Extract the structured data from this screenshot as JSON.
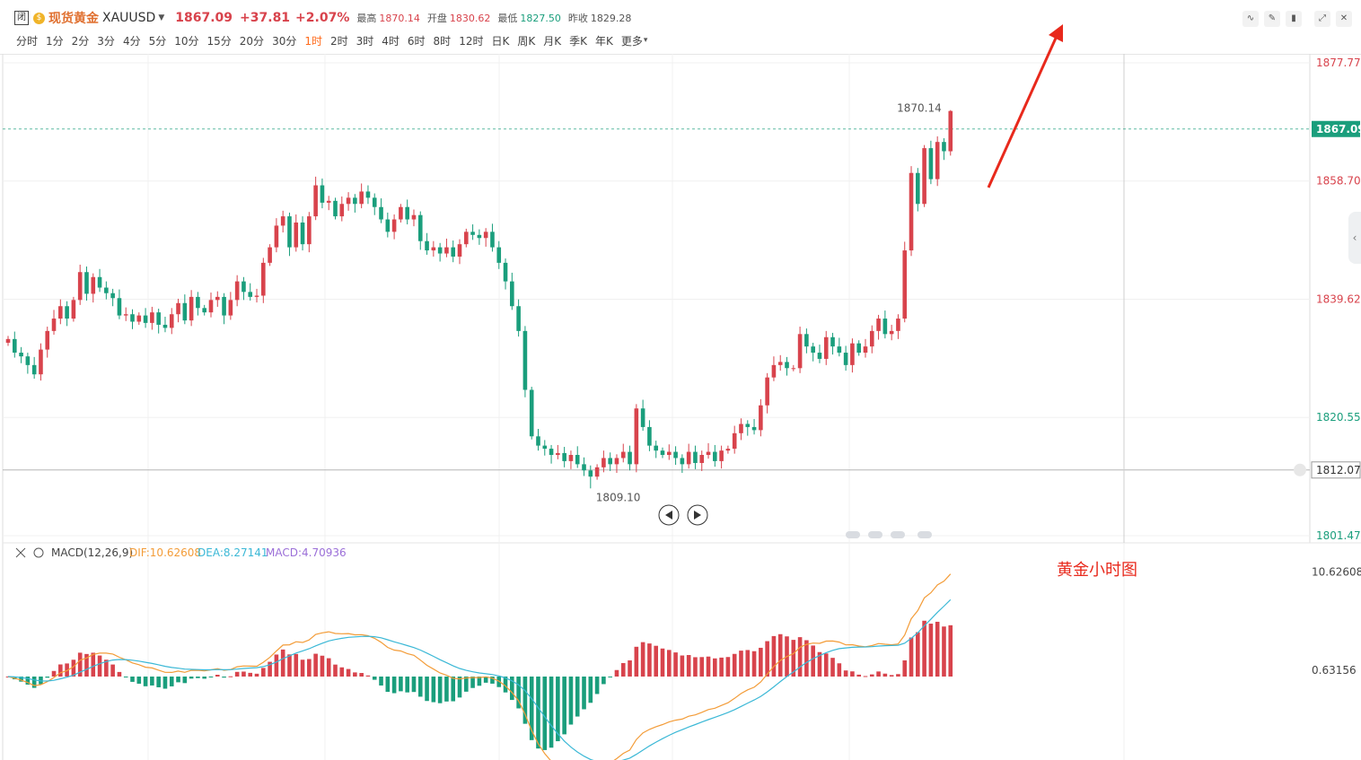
{
  "header": {
    "status_mark": "闭",
    "name": "现货黄金",
    "symbol": "XAUUSD",
    "price": "1867.09",
    "change": "+37.81",
    "change_pct": "+2.07%",
    "high_label": "最高",
    "high": "1870.14",
    "open_label": "开盘",
    "open": "1830.62",
    "low_label": "最低",
    "low": "1827.50",
    "prev_label": "昨收",
    "prev": "1829.28"
  },
  "timeframes": [
    "分时",
    "1分",
    "2分",
    "3分",
    "4分",
    "5分",
    "10分",
    "15分",
    "20分",
    "30分",
    "1时",
    "2时",
    "3时",
    "4时",
    "6时",
    "8时",
    "12时",
    "日K",
    "周K",
    "月K",
    "季K",
    "年K",
    "更多"
  ],
  "active_timeframe": "1时",
  "toolbar_icons": [
    "indicator-icon",
    "draw-icon",
    "candle-type-icon",
    "fullscreen-icon",
    "close-icon"
  ],
  "chart_data": [
    {
      "type": "candlestick",
      "title": "",
      "y_ticks": [
        "1877.77",
        "1858.70",
        "1839.62",
        "1820.55",
        "1801.47"
      ],
      "ylim": [
        1801.47,
        1877.77
      ],
      "current_price_label": "1867.09",
      "crosshair_label": "1812.07",
      "high_marker": "1870.14",
      "low_marker": "1809.10",
      "up_color": "#d8434c",
      "down_color": "#1a9e7c",
      "grid": true,
      "close": [
        1833.2,
        1831.0,
        1830.4,
        1829.0,
        1827.5,
        1831.5,
        1834.5,
        1836.5,
        1838.5,
        1836.5,
        1839.5,
        1844.0,
        1840.5,
        1843.2,
        1841.5,
        1840.6,
        1839.8,
        1837.0,
        1837.2,
        1836.0,
        1837.0,
        1835.8,
        1837.5,
        1835.5,
        1835.0,
        1837.2,
        1839.0,
        1836.2,
        1840.0,
        1838.2,
        1837.5,
        1839.5,
        1840.0,
        1837.0,
        1839.5,
        1842.5,
        1840.8,
        1840.0,
        1840.2,
        1845.5,
        1848.0,
        1851.5,
        1853.0,
        1848.0,
        1852.0,
        1848.5,
        1853.0,
        1858.0,
        1855.2,
        1855.5,
        1853.0,
        1855.0,
        1856.0,
        1855.0,
        1857.0,
        1856.0,
        1854.5,
        1852.5,
        1850.5,
        1852.5,
        1854.5,
        1852.5,
        1853.2,
        1849.0,
        1847.5,
        1848.0,
        1847.0,
        1848.0,
        1846.5,
        1848.5,
        1850.5,
        1850.0,
        1849.5,
        1850.5,
        1848.0,
        1845.5,
        1842.5,
        1838.5,
        1834.5,
        1825.0,
        1817.5,
        1816.0,
        1815.5,
        1814.5,
        1814.8,
        1813.5,
        1814.5,
        1813.0,
        1812.0,
        1811.0,
        1812.5,
        1814.0,
        1813.0,
        1814.0,
        1815.0,
        1813.0,
        1822.0,
        1819.0,
        1816.0,
        1815.2,
        1814.5,
        1815.0,
        1814.0,
        1813.0,
        1815.0,
        1813.2,
        1814.5,
        1815.0,
        1813.5,
        1815.2,
        1815.5,
        1818.0,
        1819.5,
        1819.0,
        1818.5,
        1822.5,
        1827.0,
        1829.0,
        1829.5,
        1828.5,
        1828.5,
        1834.0,
        1832.0,
        1831.0,
        1830.0,
        1833.5,
        1832.0,
        1831.0,
        1829.0,
        1832.5,
        1831.0,
        1832.0,
        1834.5,
        1836.5,
        1834.0,
        1834.5,
        1836.5,
        1847.5,
        1860.0,
        1855.0,
        1864.0,
        1859.0,
        1865.0,
        1863.5,
        1870.0
      ],
      "macd": {
        "label": "MACD(12,26,9)",
        "dif_label": "DIF:10.62608",
        "dea_label": "DEA:8.27141",
        "macd_label": "MACD:4.70936",
        "y_ticks": [
          "10.62608",
          "0.63156"
        ],
        "dif_color": "#f39c38",
        "dea_color": "#3bb8d6",
        "macd_color": "#9b6fd8"
      }
    }
  ],
  "annotation_text": "黄金小时图"
}
